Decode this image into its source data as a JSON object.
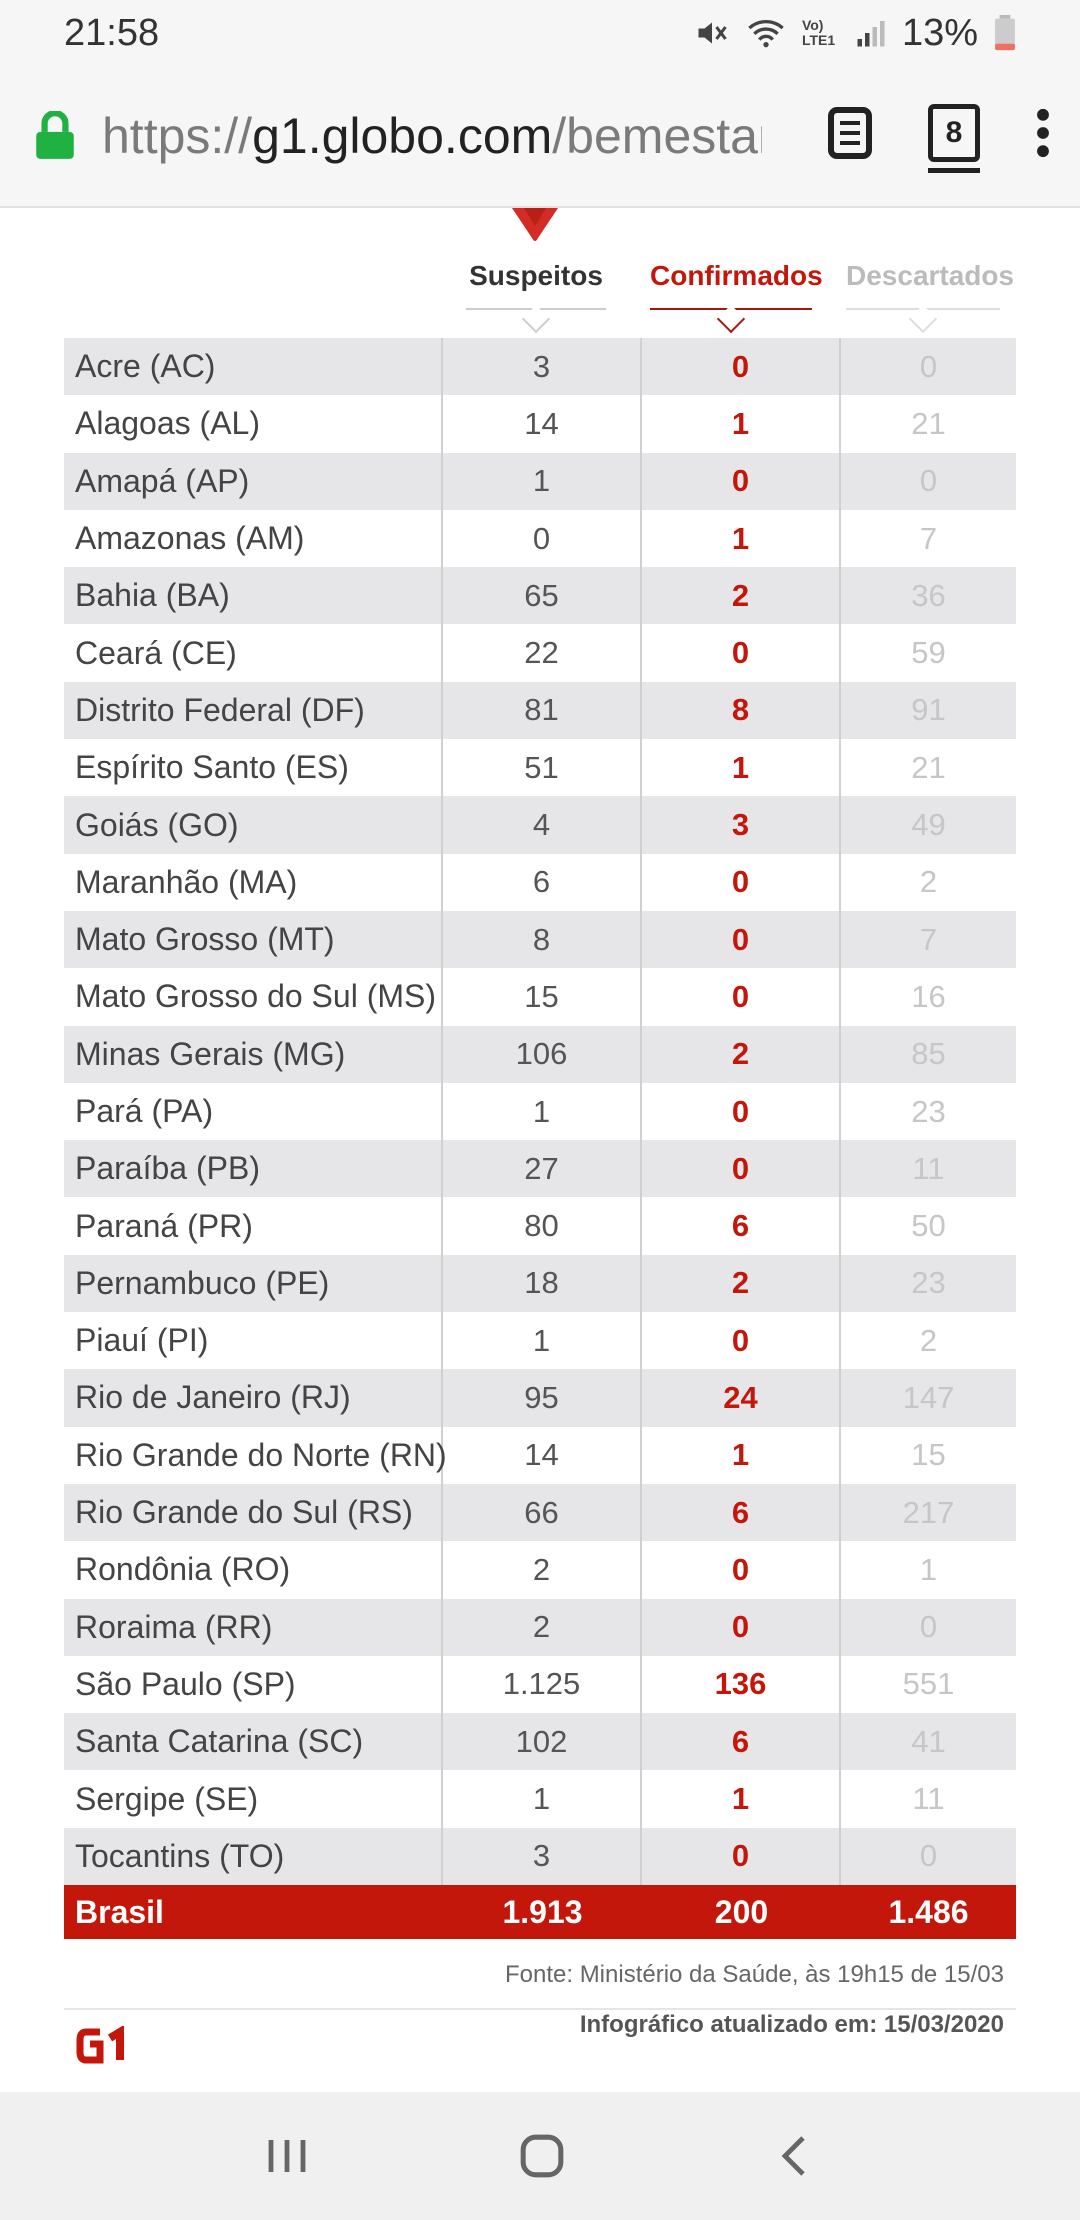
{
  "status_bar": {
    "time": "21:58",
    "network_label": "Vo) LTE1",
    "battery": "13%"
  },
  "browser": {
    "url_scheme": "https://",
    "url_host": "g1.globo.com",
    "url_path": "/bemestar/",
    "tab_count": "8"
  },
  "table": {
    "headers": {
      "suspeitos": "Suspeitos",
      "confirmados": "Confirmados",
      "descartados": "Descartados"
    },
    "rows": [
      {
        "state": "Acre (AC)",
        "suspeitos": "3",
        "confirmados": "0",
        "descartados": "0"
      },
      {
        "state": "Alagoas (AL)",
        "suspeitos": "14",
        "confirmados": "1",
        "descartados": "21"
      },
      {
        "state": "Amapá (AP)",
        "suspeitos": "1",
        "confirmados": "0",
        "descartados": "0"
      },
      {
        "state": "Amazonas (AM)",
        "suspeitos": "0",
        "confirmados": "1",
        "descartados": "7"
      },
      {
        "state": "Bahia (BA)",
        "suspeitos": "65",
        "confirmados": "2",
        "descartados": "36"
      },
      {
        "state": "Ceará (CE)",
        "suspeitos": "22",
        "confirmados": "0",
        "descartados": "59"
      },
      {
        "state": "Distrito Federal (DF)",
        "suspeitos": "81",
        "confirmados": "8",
        "descartados": "91"
      },
      {
        "state": "Espírito Santo (ES)",
        "suspeitos": "51",
        "confirmados": "1",
        "descartados": "21"
      },
      {
        "state": "Goiás (GO)",
        "suspeitos": "4",
        "confirmados": "3",
        "descartados": "49"
      },
      {
        "state": "Maranhão (MA)",
        "suspeitos": "6",
        "confirmados": "0",
        "descartados": "2"
      },
      {
        "state": "Mato Grosso (MT)",
        "suspeitos": "8",
        "confirmados": "0",
        "descartados": "7"
      },
      {
        "state": "Mato Grosso do Sul (MS)",
        "suspeitos": "15",
        "confirmados": "0",
        "descartados": "16"
      },
      {
        "state": "Minas Gerais (MG)",
        "suspeitos": "106",
        "confirmados": "2",
        "descartados": "85"
      },
      {
        "state": "Pará (PA)",
        "suspeitos": "1",
        "confirmados": "0",
        "descartados": "23"
      },
      {
        "state": "Paraíba (PB)",
        "suspeitos": "27",
        "confirmados": "0",
        "descartados": "11"
      },
      {
        "state": "Paraná (PR)",
        "suspeitos": "80",
        "confirmados": "6",
        "descartados": "50"
      },
      {
        "state": "Pernambuco (PE)",
        "suspeitos": "18",
        "confirmados": "2",
        "descartados": "23"
      },
      {
        "state": "Piauí (PI)",
        "suspeitos": "1",
        "confirmados": "0",
        "descartados": "2"
      },
      {
        "state": "Rio de Janeiro (RJ)",
        "suspeitos": "95",
        "confirmados": "24",
        "descartados": "147"
      },
      {
        "state": "Rio Grande do Norte (RN)",
        "suspeitos": "14",
        "confirmados": "1",
        "descartados": "15"
      },
      {
        "state": "Rio Grande do Sul (RS)",
        "suspeitos": "66",
        "confirmados": "6",
        "descartados": "217"
      },
      {
        "state": "Rondônia (RO)",
        "suspeitos": "2",
        "confirmados": "0",
        "descartados": "1"
      },
      {
        "state": "Roraima (RR)",
        "suspeitos": "2",
        "confirmados": "0",
        "descartados": "0"
      },
      {
        "state": "São Paulo (SP)",
        "suspeitos": "1.125",
        "confirmados": "136",
        "descartados": "551"
      },
      {
        "state": "Santa Catarina (SC)",
        "suspeitos": "102",
        "confirmados": "6",
        "descartados": "41"
      },
      {
        "state": "Sergipe (SE)",
        "suspeitos": "1",
        "confirmados": "1",
        "descartados": "11"
      },
      {
        "state": "Tocantins (TO)",
        "suspeitos": "3",
        "confirmados": "0",
        "descartados": "0"
      }
    ],
    "total": {
      "state": "Brasil",
      "suspeitos": "1.913",
      "confirmados": "200",
      "descartados": "1.486"
    }
  },
  "footer": {
    "source": "Fonte: Ministério da Saúde, às 19h15 de 15/03",
    "updated": "Infográfico atualizado em: 15/03/2020",
    "logo_text": "G1"
  },
  "colors": {
    "accent": "#c4170c",
    "row_alt": "#e6e6e9"
  }
}
